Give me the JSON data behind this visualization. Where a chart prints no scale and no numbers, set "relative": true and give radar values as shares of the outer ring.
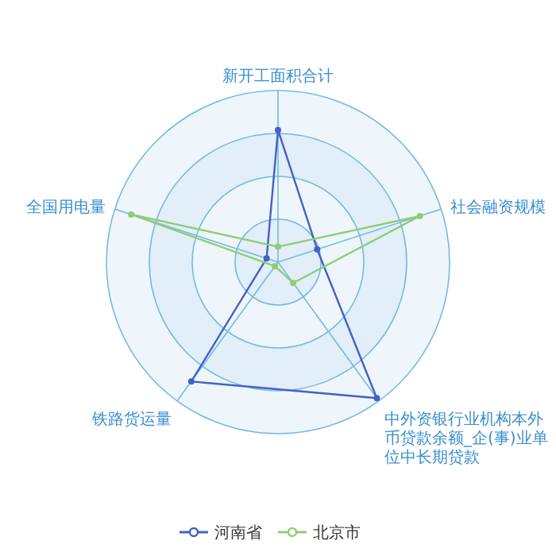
{
  "chart_data": {
    "type": "radar",
    "relative": true,
    "grid": true,
    "legend": "bottom",
    "marker": "circle",
    "line_style": "solid",
    "categories": [
      "新开工面积合计",
      "社会融资规模",
      "中外资银行业机构本外币贷款余额_企(事)业单位中长期贷款",
      "铁路货运量",
      "全国用电量"
    ],
    "series": [
      {
        "name": "河南省",
        "color": "#4560c8",
        "values": [
          0.77,
          0.24,
          0.98,
          0.86,
          0.07
        ]
      },
      {
        "name": "北京市",
        "color": "#91cc75",
        "values": [
          0.09,
          0.87,
          0.15,
          0.03,
          0.9
        ]
      }
    ]
  }
}
